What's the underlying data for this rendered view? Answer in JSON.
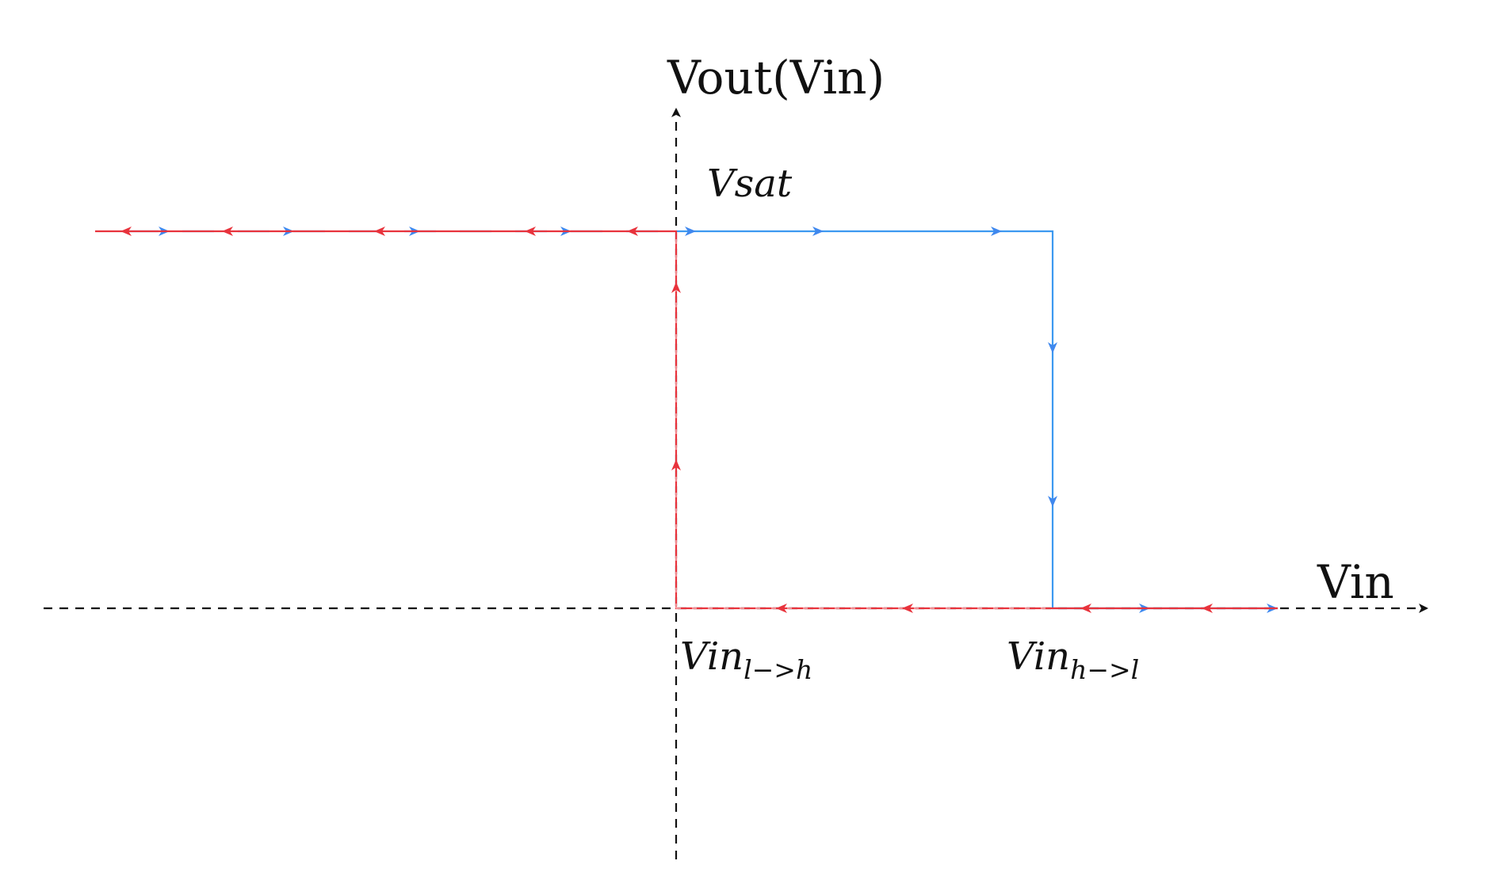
{
  "labels": {
    "y_axis": "Vout(Vin)",
    "x_axis": "Vin",
    "saturation": "Vsat",
    "threshold_low_high": {
      "main": "Vin",
      "sub": "l−>h"
    },
    "threshold_high_low": {
      "main": "Vin",
      "sub": "h−>l"
    }
  },
  "colors": {
    "axis": "#111111",
    "path_rising_input": "#3c99f0",
    "path_falling_input": "#e8333c",
    "arrow_blue": "#3f88ee"
  },
  "paths": [
    {
      "name": "increasing-input-path",
      "color_key": "path_rising_input",
      "arrows": "forward"
    },
    {
      "name": "decreasing-input-path",
      "color_key": "path_falling_input",
      "arrows": "backward"
    }
  ]
}
